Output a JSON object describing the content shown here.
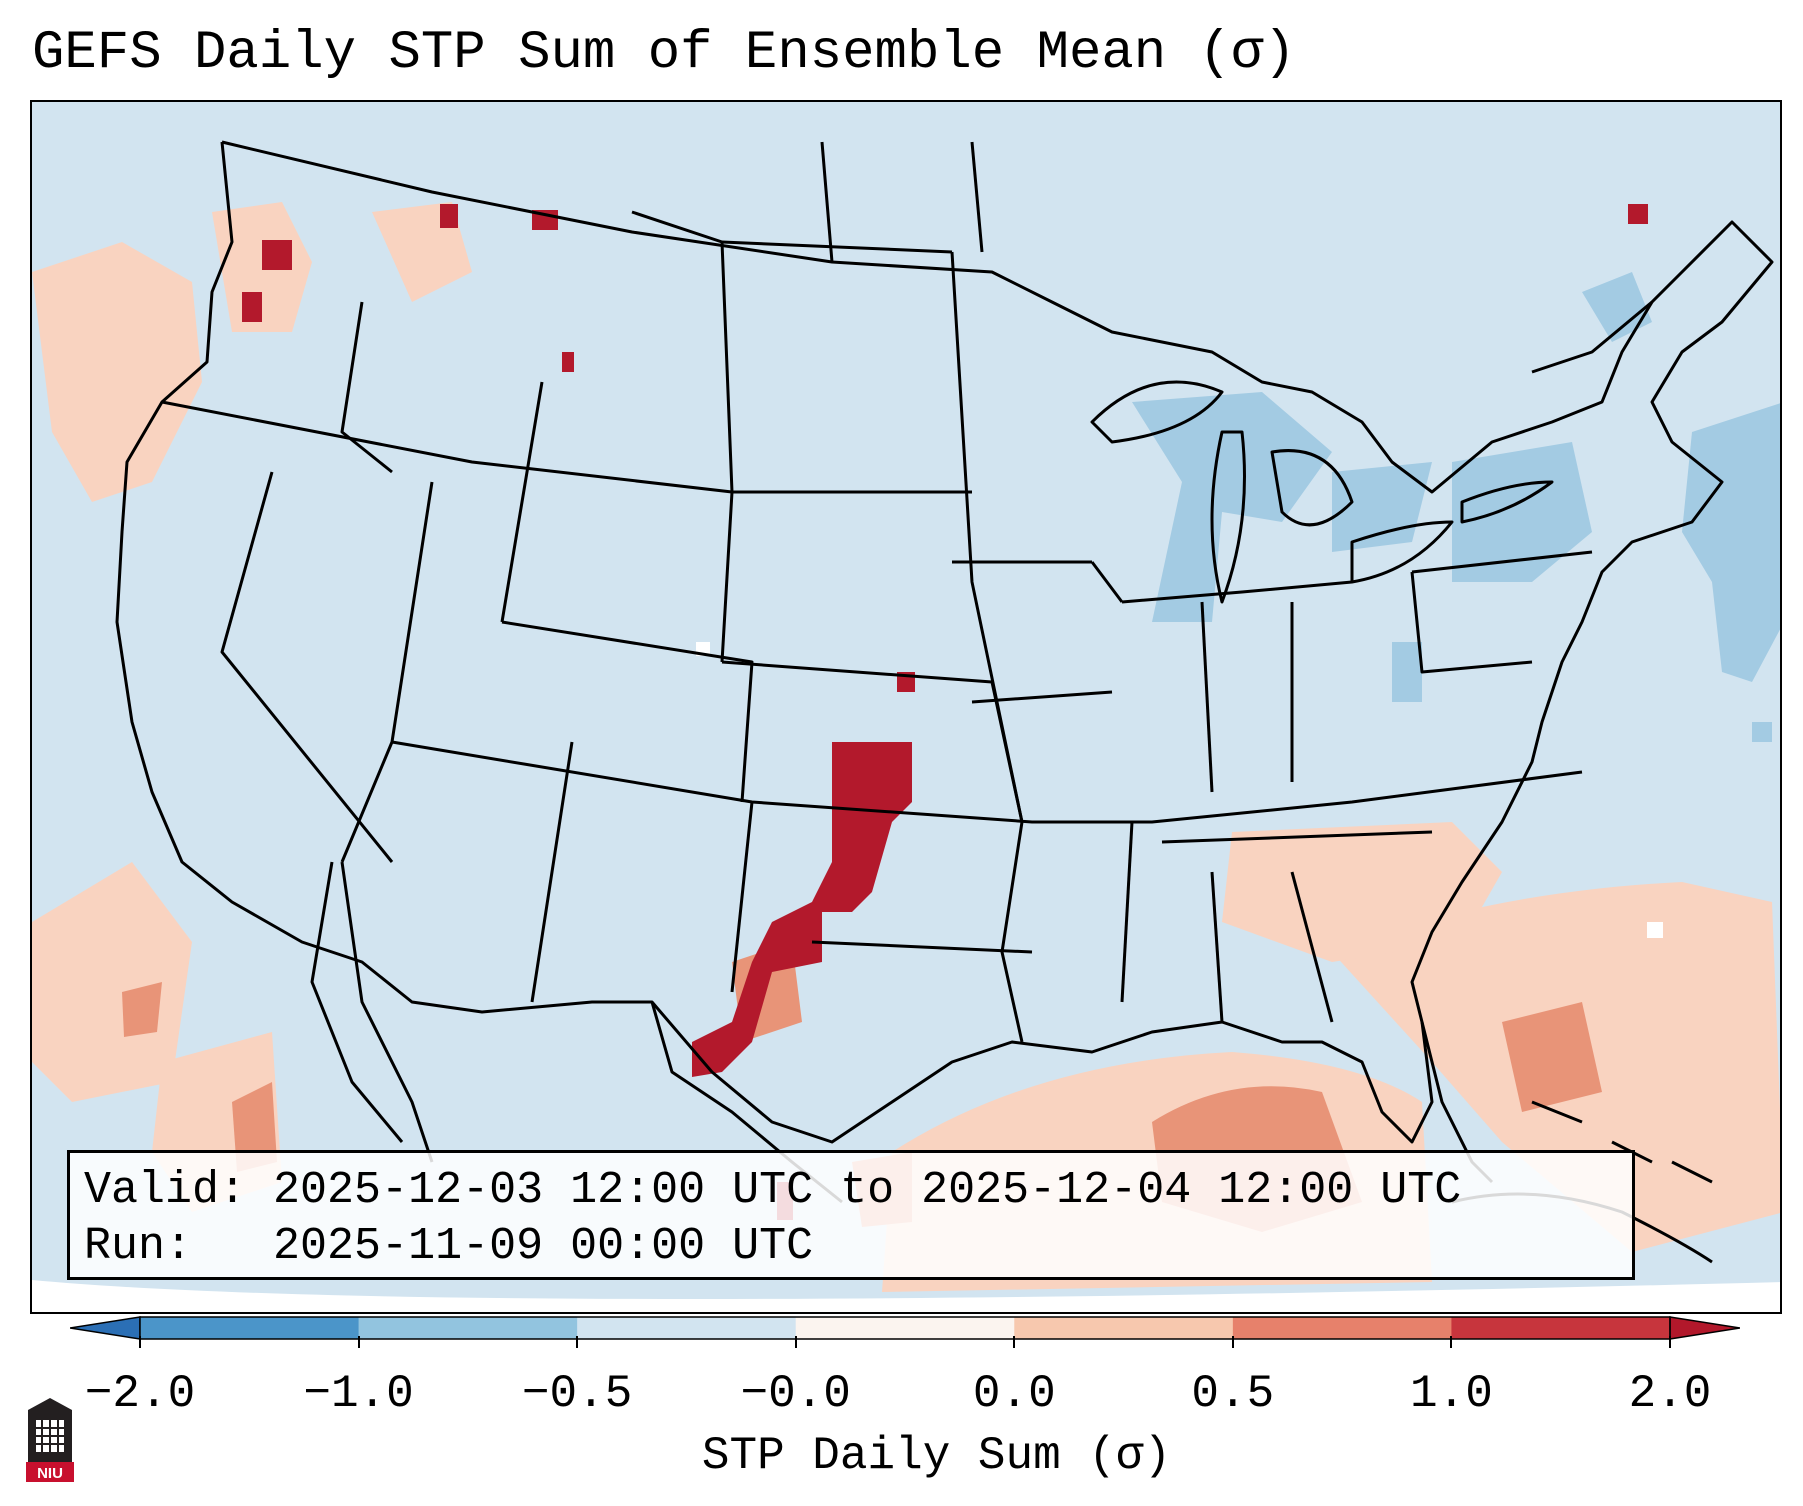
{
  "title": "GEFS Daily STP Sum of Ensemble Mean (σ)",
  "info": {
    "valid_label": "Valid:",
    "valid_value": "2025-12-03 12:00 UTC to 2025-12-04 12:00 UTC",
    "run_label": "Run:",
    "run_value": "2025-11-09 00:00 UTC"
  },
  "colorbar": {
    "label": "STP Daily Sum (σ)",
    "ticks": [
      "−2.0",
      "−1.0",
      "−0.5",
      "−0.0",
      "0.0",
      "0.5",
      "1.0",
      "2.0"
    ],
    "colors": [
      "#2b6fb5",
      "#4b95c9",
      "#92c4df",
      "#d2e4f0",
      "#fbf4ef",
      "#f7c8ae",
      "#e7816b",
      "#c7353d",
      "#b2182b"
    ]
  },
  "logo_text": "NIU",
  "map_colors": {
    "background": "#d2e4f0",
    "light_red": "#f9d3c0",
    "mid_red": "#e89478",
    "dark_red": "#b3192c",
    "light_blue": "#a3cbe3"
  }
}
